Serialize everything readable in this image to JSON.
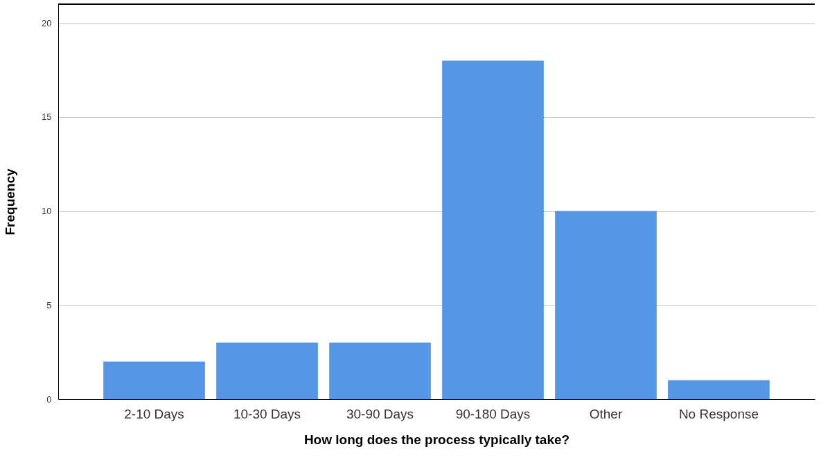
{
  "chart_data": {
    "type": "bar",
    "xlabel": "How long does the process typically take?",
    "ylabel": "Frequency",
    "categories": [
      "2-10 Days",
      "10-30 Days",
      "30-90 Days",
      "90-180 Days",
      "Other",
      "No Response"
    ],
    "values": [
      2,
      3,
      3,
      18,
      10,
      1
    ],
    "color": "#5596e6",
    "ylim": [
      0,
      21
    ],
    "yticks": [
      0,
      5,
      10,
      15,
      20
    ],
    "grid": "y"
  }
}
